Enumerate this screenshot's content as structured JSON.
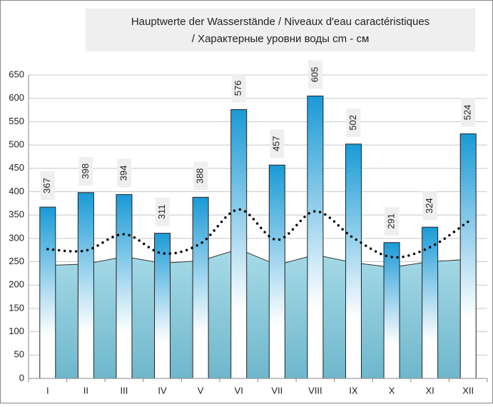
{
  "chart_data": {
    "type": "bar",
    "title": [
      "Hauptwerte der Wasserstände / Niveaux d'eau caractéristiques",
      "/ Характерные уровни воды cm - см"
    ],
    "categories": [
      "I",
      "II",
      "III",
      "IV",
      "V",
      "VI",
      "VII",
      "VIII",
      "IX",
      "X",
      "XI",
      "XII"
    ],
    "series": [
      {
        "type": "bar",
        "color": "#1a9ad6",
        "values": [
          367,
          398,
          394,
          311,
          388,
          576,
          457,
          605,
          502,
          291,
          324,
          524
        ]
      },
      {
        "type": "area",
        "color": "#8ccbdc",
        "values": [
          242,
          245,
          261,
          247,
          252,
          277,
          243,
          265,
          248,
          238,
          250,
          255
        ]
      },
      {
        "type": "line",
        "color": "#000000",
        "values": [
          277,
          274,
          309,
          268,
          289,
          362,
          297,
          358,
          301,
          260,
          281,
          336
        ]
      }
    ],
    "ylim": [
      0,
      650
    ],
    "yticks": [
      0,
      50,
      100,
      150,
      200,
      250,
      300,
      350,
      400,
      450,
      500,
      550,
      600,
      650
    ],
    "grid": true
  }
}
